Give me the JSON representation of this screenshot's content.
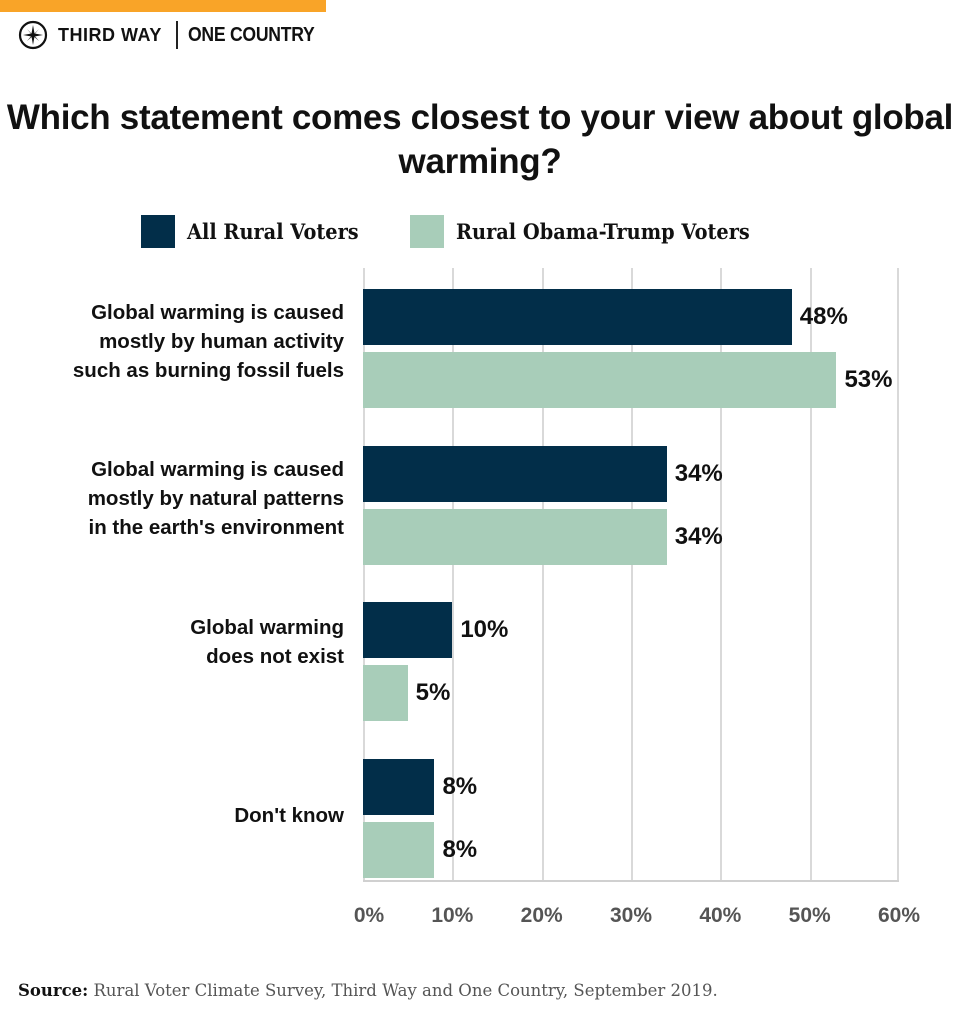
{
  "header": {
    "accent_color": "#f9a428",
    "brand_left": "THIRD WAY",
    "brand_right": "ONE COUNTRY",
    "logo_icon": "compass-icon"
  },
  "title": "Which statement comes closest to your view about global warming?",
  "legend": [
    {
      "label": "All Rural Voters",
      "color": "#022e49"
    },
    {
      "label": "Rural Obama-Trump Voters",
      "color": "#a8cdb9"
    }
  ],
  "axis": {
    "ticks": [
      "0%",
      "10%",
      "20%",
      "30%",
      "40%",
      "50%",
      "60%"
    ]
  },
  "source": {
    "label": "Source:",
    "text": "Rural Voter Climate Survey, Third Way and One Country, September 2019."
  },
  "chart_data": {
    "type": "bar",
    "orientation": "horizontal",
    "title": "Which statement comes closest to your view about global warming?",
    "categories": [
      "Global warming is caused mostly by human activity such as burning fossil fuels",
      "Global warming is caused mostly by natural patterns in the earth's environment",
      "Global warming does not exist",
      "Don't know"
    ],
    "category_labels": [
      "Global warming is caused\nmostly by human activity\nsuch as burning fossil fuels",
      "Global warming is caused\nmostly by natural patterns\nin the earth's environment",
      "Global warming\ndoes not exist",
      "Don't know"
    ],
    "series": [
      {
        "name": "All Rural Voters",
        "color": "#022e49",
        "values": [
          48,
          34,
          10,
          8
        ],
        "labels": [
          "48%",
          "34%",
          "10%",
          "8%"
        ]
      },
      {
        "name": "Rural Obama-Trump Voters",
        "color": "#a8cdb9",
        "values": [
          53,
          34,
          5,
          8
        ],
        "labels": [
          "53%",
          "34%",
          "5%",
          "8%"
        ]
      }
    ],
    "xlabel": "",
    "ylabel": "",
    "xlim": [
      0,
      60
    ],
    "x_ticks": [
      "0%",
      "10%",
      "20%",
      "30%",
      "40%",
      "50%",
      "60%"
    ],
    "grid": true,
    "legend_position": "top",
    "source": "Source: Rural Voter Climate Survey, Third Way and One Country, September 2019."
  }
}
